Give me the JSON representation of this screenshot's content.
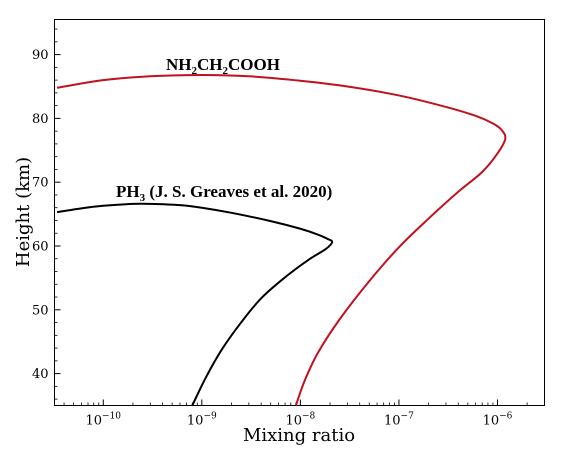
{
  "chart_data": {
    "type": "line",
    "xlabel": "Mixing ratio",
    "ylabel": "Height (km)",
    "xscale": "log",
    "xlim": [
      3.2e-11,
      3e-06
    ],
    "ylim": [
      35,
      95.5
    ],
    "x_ticks": [
      {
        "value": 1e-10,
        "base": "10",
        "exp": "−10"
      },
      {
        "value": 1e-09,
        "base": "10",
        "exp": "−9"
      },
      {
        "value": 1e-08,
        "base": "10",
        "exp": "−8"
      },
      {
        "value": 1e-07,
        "base": "10",
        "exp": "−7"
      },
      {
        "value": 1e-06,
        "base": "10",
        "exp": "−6"
      }
    ],
    "y_ticks": [
      "40",
      "50",
      "60",
      "70",
      "80",
      "90"
    ],
    "colors": {
      "pc": "#c0111f",
      "p": "#000000"
    },
    "series": [
      {
        "key": "pc",
        "labels": [
          "NH",
          "2",
          "CH",
          "2",
          "COOH"
        ],
        "x": [
          3.4e-11,
          1e-10,
          3e-10,
          1e-09,
          3e-09,
          1e-08,
          3e-08,
          1e-07,
          3e-07,
          6e-07,
          9e-07,
          1.1e-06,
          1.2e-06,
          1e-06,
          7e-07,
          4e-07,
          2e-07,
          1e-07,
          5e-08,
          2.5e-08,
          1.5e-08,
          1.1e-08,
          9e-09
        ],
        "y": [
          84.8,
          86.0,
          86.6,
          86.8,
          86.6,
          85.9,
          85.0,
          83.6,
          81.8,
          80.4,
          79.2,
          78.2,
          76.8,
          74.5,
          71.6,
          68.5,
          64.3,
          59.8,
          54.5,
          48.5,
          43.2,
          38.8,
          35
        ]
      },
      {
        "key": "p",
        "labels": [
          "PH",
          "3",
          " (J. S. Greaves et al. 2020)"
        ],
        "x": [
          3.4e-11,
          6e-11,
          1e-10,
          2e-10,
          3e-10,
          6e-10,
          1e-09,
          2e-09,
          5e-09,
          1e-08,
          1.5e-08,
          1.9e-08,
          2.1e-08,
          1.8e-08,
          1.2e-08,
          7e-09,
          4e-09,
          2.5e-09,
          1.6e-09,
          1.1e-09,
          8e-10
        ],
        "y": [
          65.3,
          65.9,
          66.3,
          66.6,
          66.6,
          66.4,
          66.0,
          65.2,
          63.9,
          62.7,
          61.8,
          61.1,
          60.6,
          59.5,
          57.8,
          55.1,
          51.8,
          48.0,
          43.8,
          39.4,
          35
        ]
      }
    ]
  }
}
